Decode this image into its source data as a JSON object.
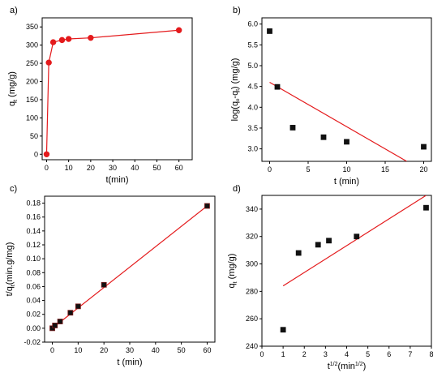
{
  "chart_data": [
    {
      "panel": "a)",
      "type": "line",
      "markers": "circle",
      "x": [
        0,
        1,
        3,
        7,
        10,
        20,
        60
      ],
      "y": [
        0,
        252,
        308,
        314,
        317,
        320,
        341
      ],
      "xlim": [
        -2,
        66
      ],
      "ylim": [
        -15,
        375
      ],
      "xticks": [
        "0",
        "10",
        "20",
        "30",
        "40",
        "50",
        "60"
      ],
      "yticks": [
        "0",
        "50",
        "100",
        "150",
        "200",
        "250",
        "300",
        "350"
      ],
      "xlabel": "t(min)",
      "ylabel": {
        "base": "q",
        "sub": "t",
        "rest": " (mg/g)"
      },
      "color": "#e41a1c"
    },
    {
      "panel": "b)",
      "type": "scatter",
      "x": [
        0,
        1,
        3,
        7,
        10,
        20
      ],
      "y": [
        5.83,
        4.49,
        3.51,
        3.28,
        3.17,
        3.05
      ],
      "fit": {
        "x": [
          0,
          17.8
        ],
        "y": [
          4.6,
          2.7
        ]
      },
      "xlim": [
        -1,
        21
      ],
      "ylim": [
        2.7,
        6.15
      ],
      "xticks": [
        "0",
        "5",
        "10",
        "15",
        "20"
      ],
      "yticks": [
        "3.0",
        "3.5",
        "4.0",
        "4.5",
        "5.0",
        "5.5",
        "6.0"
      ],
      "xlabel": "t (min)",
      "ylabel": {
        "pre": "log(q",
        "sub1": "e",
        "mid": "-q",
        "sub2": "t",
        "rest": ") (mg/g)"
      },
      "fit_color": "#e41a1c"
    },
    {
      "panel": "c)",
      "type": "scatter",
      "x": [
        0,
        1,
        3,
        7,
        10,
        20,
        60
      ],
      "y": [
        0.0,
        0.004,
        0.0097,
        0.0223,
        0.0315,
        0.0625,
        0.176
      ],
      "fit": {
        "x": [
          0,
          60
        ],
        "y": [
          0.0,
          0.176
        ]
      },
      "xlim": [
        -3,
        63
      ],
      "ylim": [
        -0.02,
        0.19
      ],
      "xticks": [
        "0",
        "10",
        "20",
        "30",
        "40",
        "50",
        "60"
      ],
      "yticks": [
        "-0.02",
        "0.00",
        "0.02",
        "0.04",
        "0.06",
        "0.08",
        "0.10",
        "0.12",
        "0.14",
        "0.16",
        "0.18"
      ],
      "xlabel": "t (min)",
      "ylabel": {
        "pre": "t/q",
        "sub": "t",
        "rest": "(min.g/mg)"
      },
      "fit_color": "#e41a1c"
    },
    {
      "panel": "d)",
      "type": "scatter",
      "x": [
        1.0,
        1.73,
        2.65,
        3.16,
        4.47,
        7.75
      ],
      "y": [
        252,
        308,
        314,
        317,
        320,
        341
      ],
      "fit": {
        "x": [
          1.0,
          7.75
        ],
        "y": [
          284,
          350
        ]
      },
      "xlim": [
        0,
        8
      ],
      "ylim": [
        240,
        350
      ],
      "xticks": [
        "0",
        "1",
        "2",
        "3",
        "4",
        "5",
        "6",
        "7",
        "8"
      ],
      "yticks": [
        "240",
        "260",
        "280",
        "300",
        "320",
        "340"
      ],
      "xlabel": {
        "pre": "t",
        "sup1": "1/2",
        "mid": "(min",
        "sup2": "1/2",
        "rest": ")"
      },
      "ylabel": {
        "base": "q",
        "sub": "t",
        "rest": " (mg/g)"
      },
      "fit_color": "#e41a1c"
    }
  ]
}
